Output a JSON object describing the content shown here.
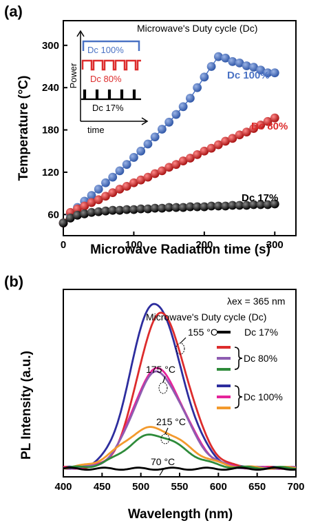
{
  "chart_data": [
    {
      "panel": "(a)",
      "type": "scatter",
      "title": "Microwave's Duty cycle (Dc)",
      "xlabel": "Microwave Radiation time (s)",
      "ylabel": "Temperature (°C)",
      "xlim": [
        0,
        330
      ],
      "ylim": [
        30,
        335
      ],
      "xticks": [
        0,
        100,
        200,
        300
      ],
      "yticks": [
        60,
        120,
        180,
        240,
        300
      ],
      "legend": "inline labels at right end of each series",
      "series": [
        {
          "name": "Dc 100%",
          "color": "#4a72c4",
          "x": [
            0,
            10,
            20,
            30,
            40,
            50,
            60,
            70,
            80,
            90,
            100,
            110,
            120,
            130,
            140,
            150,
            160,
            170,
            180,
            190,
            200,
            210,
            220,
            230,
            240,
            250,
            260,
            270,
            280,
            290,
            300
          ],
          "y": [
            48,
            60,
            70,
            79,
            87,
            96,
            105,
            113,
            122,
            131,
            141,
            150,
            160,
            170,
            181,
            191,
            202,
            213,
            225,
            240,
            255,
            270,
            284,
            282,
            277,
            275,
            271,
            269,
            265,
            261,
            261
          ]
        },
        {
          "name": "Dc 80%",
          "color": "#dd2c2c",
          "x": [
            0,
            10,
            20,
            30,
            40,
            50,
            60,
            70,
            80,
            90,
            100,
            110,
            120,
            130,
            140,
            150,
            160,
            170,
            180,
            190,
            200,
            210,
            220,
            230,
            240,
            250,
            260,
            270,
            280,
            290,
            300
          ],
          "y": [
            48,
            63,
            68,
            72,
            77,
            81,
            86,
            91,
            96,
            100,
            105,
            109,
            113,
            118,
            122,
            127,
            131,
            136,
            140,
            145,
            150,
            154,
            159,
            164,
            168,
            173,
            177,
            182,
            187,
            192,
            197
          ]
        },
        {
          "name": "Dc 17%",
          "color": "#1a1a1a",
          "x": [
            0,
            10,
            20,
            30,
            40,
            50,
            60,
            70,
            80,
            90,
            100,
            110,
            120,
            130,
            140,
            150,
            160,
            170,
            180,
            190,
            200,
            210,
            220,
            230,
            240,
            250,
            260,
            270,
            280,
            290,
            300
          ],
          "y": [
            48,
            55,
            59,
            61,
            63,
            64,
            65,
            66,
            66,
            67,
            67,
            68,
            68,
            69,
            69,
            70,
            70,
            70,
            71,
            71,
            71,
            72,
            72,
            72,
            73,
            73,
            73,
            74,
            74,
            74,
            75
          ]
        }
      ],
      "inset": {
        "ylabel": "Power",
        "xlabel": "time",
        "labels": [
          "Dc 100%",
          "Dc 80%",
          "Dc 17%"
        ],
        "colors": [
          "#4a72c4",
          "#dd2c2c",
          "#000000"
        ]
      }
    },
    {
      "panel": "(b)",
      "type": "line",
      "xlabel": "Wavelength (nm)",
      "ylabel": "PL Intensity (a.u.)",
      "xlim": [
        400,
        700
      ],
      "xticks": [
        400,
        450,
        500,
        550,
        600,
        650,
        700
      ],
      "ylim": [
        0,
        1
      ],
      "excitation_note": "λex = 365 nm",
      "subtitle": "Microwave's Duty cycle (Dc)",
      "legend": "right",
      "legend_entries": [
        {
          "color": "#000000",
          "label": "Dc 17%"
        },
        {
          "color": "#dd2c2c",
          "label": ""
        },
        {
          "color": "#8e5db1",
          "label": "Dc 80%"
        },
        {
          "color": "#2e8b3a",
          "label": ""
        },
        {
          "color": "#2d2d9e",
          "label": ""
        },
        {
          "color": "#e5239a",
          "label": "Dc 100%"
        },
        {
          "color": "#f39a2d",
          "label": ""
        }
      ],
      "annotations": [
        "155 °C",
        "175 °C",
        "215 °C",
        "70 °C"
      ],
      "series": [
        {
          "color": "#2d2d9e",
          "peak_x": 517,
          "peak_y": 0.95,
          "sigma": 32,
          "baseline": 0.02
        },
        {
          "color": "#dd2c2c",
          "peak_x": 525,
          "peak_y": 0.89,
          "sigma": 31,
          "baseline": 0.02
        },
        {
          "color": "#e5239a",
          "peak_x": 520,
          "peak_y": 0.57,
          "sigma": 32,
          "baseline": 0.02
        },
        {
          "color": "#8e5db1",
          "peak_x": 520,
          "peak_y": 0.55,
          "sigma": 32,
          "baseline": 0.02
        },
        {
          "color": "#f39a2d",
          "peak_x": 513,
          "peak_y": 0.23,
          "sigma": 40,
          "baseline": 0.02
        },
        {
          "color": "#2e8b3a",
          "peak_x": 515,
          "peak_y": 0.19,
          "sigma": 36,
          "baseline": 0.02
        },
        {
          "color": "#000000",
          "peak_x": 500,
          "peak_y": 0.0,
          "sigma": 30,
          "baseline": 0.015
        }
      ]
    }
  ]
}
